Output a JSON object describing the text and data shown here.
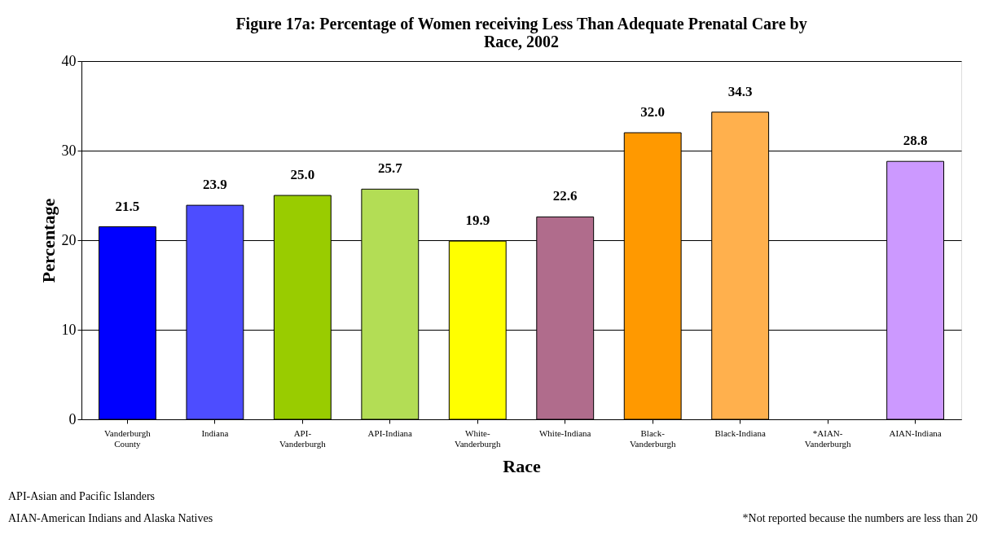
{
  "chart_data": {
    "type": "bar",
    "title": "Figure 17a: Percentage of Women receiving Less Than Adequate Prenatal Care by Race, 2002",
    "xlabel": "Race",
    "ylabel": "Percentage",
    "categories": [
      "Vanderburgh County",
      "Indiana",
      "API-Vanderburgh",
      "API-Indiana",
      "White-Vanderburgh",
      "White-Indiana",
      "Black-Vanderburgh",
      "Black-Indiana",
      "*AIAN-Vanderburgh",
      "AIAN-Indiana"
    ],
    "values": [
      21.5,
      23.9,
      25.0,
      25.7,
      19.9,
      22.6,
      32.0,
      34.3,
      null,
      28.8
    ],
    "colors": [
      "#0000ff",
      "#4d4dff",
      "#99cc00",
      "#b3dd55",
      "#ffff00",
      "#b06c8c",
      "#ff9900",
      "#ffb04d",
      "#cc99ff",
      "#cc99ff"
    ],
    "value_labels": [
      "21.5",
      "23.9",
      "25.0",
      "25.7",
      "19.9",
      "22.6",
      "32.0",
      "34.3",
      null,
      "28.8"
    ],
    "ylim": [
      0,
      40
    ],
    "yticks": [
      0,
      10,
      20,
      30,
      40
    ],
    "grid": "y",
    "annotations": [
      "API-Asian and Pacific Islanders",
      "AIAN-American Indians and Alaska Natives",
      "*Not reported because the numbers are less than 20"
    ]
  }
}
